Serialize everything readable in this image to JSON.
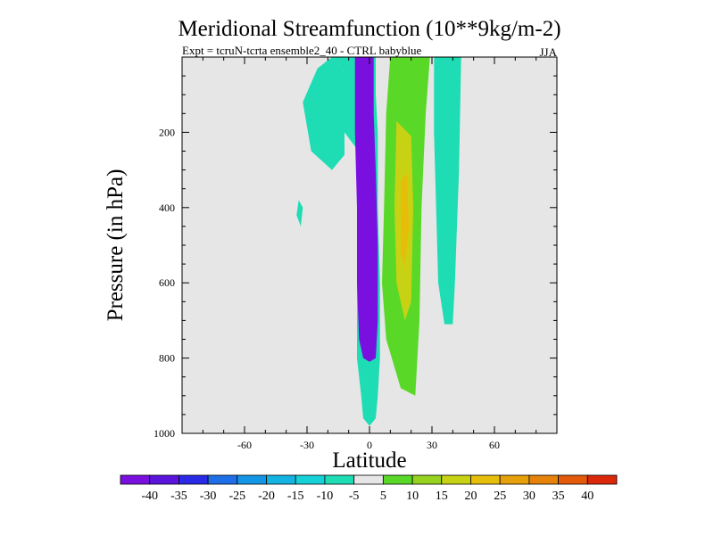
{
  "chart_data": {
    "type": "contour",
    "title": "Meridional Streamfunction (10**9kg/m-2)",
    "subtitle": "Expt = tcruN-tcrta ensemble2_40 - CTRL babyblue",
    "season": "JJA",
    "xlabel": "Latitude",
    "ylabel": "Pressure (in hPa)",
    "xlim": [
      -90,
      90
    ],
    "ylim": [
      0,
      1000
    ],
    "y_inverted": true,
    "background_color": "#e6e6e6",
    "x_ticks": [
      {
        "value": -60,
        "label": "-60"
      },
      {
        "value": -30,
        "label": "-30"
      },
      {
        "value": 0,
        "label": "0"
      },
      {
        "value": 30,
        "label": "30"
      },
      {
        "value": 60,
        "label": "60"
      }
    ],
    "y_ticks": [
      {
        "value": 200,
        "label": "200"
      },
      {
        "value": 400,
        "label": "400"
      },
      {
        "value": 600,
        "label": "600"
      },
      {
        "value": 800,
        "label": "800"
      },
      {
        "value": 1000,
        "label": "1000"
      }
    ],
    "colorbar": {
      "bins": [
        {
          "label": "-40",
          "color": "#7a10e0"
        },
        {
          "label": "-35",
          "color": "#5a14dc"
        },
        {
          "label": "-30",
          "color": "#2a2ae6"
        },
        {
          "label": "-25",
          "color": "#1e6ee8"
        },
        {
          "label": "-20",
          "color": "#1496e6"
        },
        {
          "label": "-15",
          "color": "#14b4e2"
        },
        {
          "label": "-10",
          "color": "#14d2d8"
        },
        {
          "label": "-5",
          "color": "#1edcb4"
        },
        {
          "label": "5",
          "color": "#e6e6e6"
        },
        {
          "label": "10",
          "color": "#5ad828"
        },
        {
          "label": "15",
          "color": "#96d21e"
        },
        {
          "label": "20",
          "color": "#c8d214"
        },
        {
          "label": "25",
          "color": "#e6be0a"
        },
        {
          "label": "30",
          "color": "#e6a00a"
        },
        {
          "label": "35",
          "color": "#e6820a"
        },
        {
          "label": "40",
          "color": "#e25a0a"
        },
        {
          "label": "",
          "color": "#dc280a"
        }
      ]
    },
    "contour_regions": [
      {
        "name": "negative-cell-outer",
        "level": -5,
        "color": "#1edcb4",
        "outline": [
          [
            -18,
            0
          ],
          [
            -12,
            40
          ],
          [
            -12,
            200
          ],
          [
            -4,
            260
          ],
          [
            -6,
            400
          ],
          [
            -6,
            600
          ],
          [
            -6,
            800
          ],
          [
            -4,
            900
          ],
          [
            -3,
            960
          ],
          [
            0,
            980
          ],
          [
            3,
            960
          ],
          [
            4,
            900
          ],
          [
            5,
            800
          ],
          [
            5,
            600
          ],
          [
            4,
            400
          ],
          [
            4,
            200
          ],
          [
            3,
            100
          ],
          [
            3,
            0
          ]
        ]
      },
      {
        "name": "negative-cell-west-lobe",
        "level": -5,
        "color": "#1edcb4",
        "outline": [
          [
            -18,
            0
          ],
          [
            -25,
            30
          ],
          [
            -32,
            120
          ],
          [
            -28,
            250
          ],
          [
            -18,
            300
          ],
          [
            -12,
            260
          ],
          [
            -12,
            40
          ]
        ]
      },
      {
        "name": "negative-cell-core-40",
        "level": -40,
        "color": "#7a10e0",
        "outline": [
          [
            -7,
            0
          ],
          [
            -7,
            200
          ],
          [
            -6,
            400
          ],
          [
            -6,
            600
          ],
          [
            -5,
            750
          ],
          [
            -3,
            800
          ],
          [
            0,
            810
          ],
          [
            3,
            800
          ],
          [
            4,
            700
          ],
          [
            4,
            500
          ],
          [
            3,
            300
          ],
          [
            2,
            150
          ],
          [
            2,
            0
          ]
        ]
      },
      {
        "name": "positive-cell-10",
        "level": 10,
        "color": "#5ad828",
        "outline": [
          [
            10,
            0
          ],
          [
            8,
            150
          ],
          [
            7,
            400
          ],
          [
            6,
            600
          ],
          [
            8,
            750
          ],
          [
            15,
            880
          ],
          [
            22,
            900
          ],
          [
            24,
            700
          ],
          [
            25,
            400
          ],
          [
            27,
            150
          ],
          [
            29,
            0
          ]
        ]
      },
      {
        "name": "positive-cell-core-20",
        "level": 20,
        "color": "#c8d214",
        "outline": [
          [
            13,
            170
          ],
          [
            12,
            400
          ],
          [
            13,
            600
          ],
          [
            17,
            700
          ],
          [
            20,
            650
          ],
          [
            21,
            400
          ],
          [
            20,
            210
          ]
        ]
      },
      {
        "name": "positive-cell-core-25",
        "level": 25,
        "color": "#e6be0a",
        "outline": [
          [
            15,
            330
          ],
          [
            15,
            520
          ],
          [
            17,
            560
          ],
          [
            19,
            450
          ],
          [
            18,
            310
          ]
        ]
      },
      {
        "name": "north-band",
        "level": -5,
        "color": "#1edcb4",
        "outline": [
          [
            31,
            0
          ],
          [
            31,
            200
          ],
          [
            33,
            600
          ],
          [
            36,
            710
          ],
          [
            40,
            710
          ],
          [
            41,
            600
          ],
          [
            43,
            300
          ],
          [
            44,
            0
          ]
        ]
      },
      {
        "name": "small-spot",
        "level": -5,
        "color": "#1edcb4",
        "outline": [
          [
            -34,
            380
          ],
          [
            -35,
            420
          ],
          [
            -33,
            450
          ],
          [
            -32,
            400
          ]
        ]
      }
    ]
  }
}
